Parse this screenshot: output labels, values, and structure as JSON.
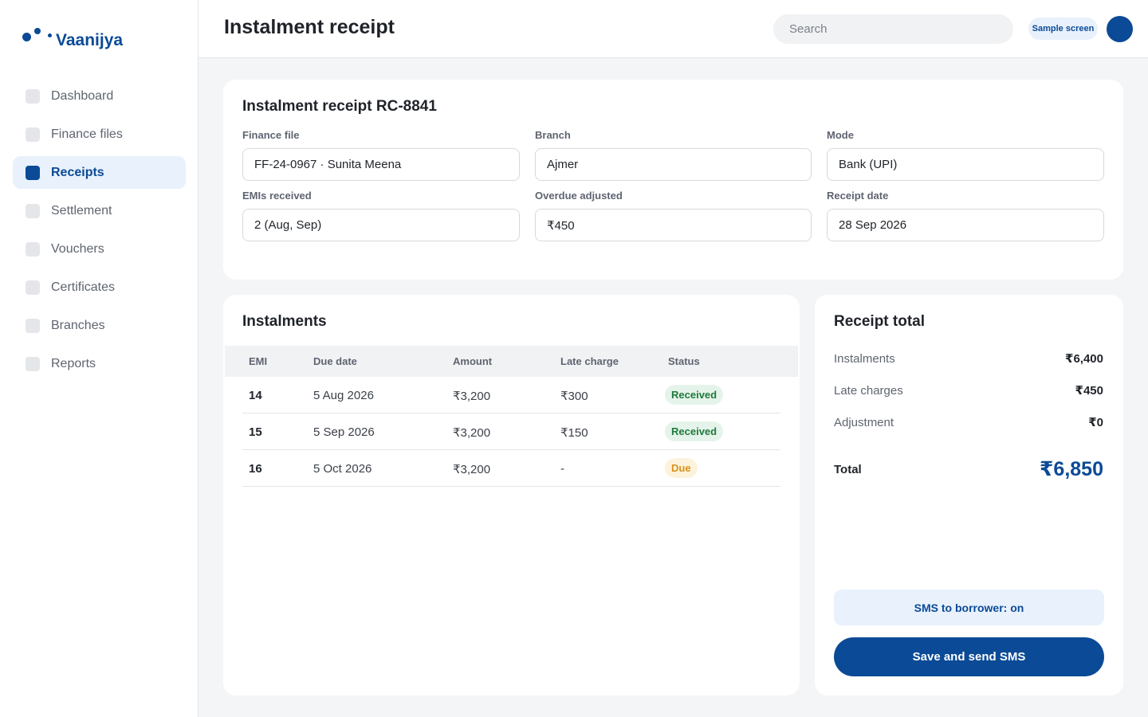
{
  "app": {
    "name": "Vaanijya"
  },
  "sidebar": {
    "items": [
      {
        "label": "Dashboard",
        "active": false
      },
      {
        "label": "Finance files",
        "active": false
      },
      {
        "label": "Receipts",
        "active": true
      },
      {
        "label": "Settlement",
        "active": false
      },
      {
        "label": "Vouchers",
        "active": false
      },
      {
        "label": "Certificates",
        "active": false
      },
      {
        "label": "Branches",
        "active": false
      },
      {
        "label": "Reports",
        "active": false
      }
    ]
  },
  "header": {
    "title": "Instalment receipt",
    "search_placeholder": "Search",
    "badge": "Sample screen"
  },
  "receipt": {
    "title": "Instalment receipt RC-8841",
    "fields": [
      {
        "label": "Finance file",
        "value": "FF-24-0967 · Sunita Meena"
      },
      {
        "label": "Branch",
        "value": "Ajmer"
      },
      {
        "label": "Mode",
        "value": "Bank (UPI)"
      },
      {
        "label": "EMIs received",
        "value": "2 (Aug, Sep)"
      },
      {
        "label": "Overdue adjusted",
        "value": "₹450"
      },
      {
        "label": "Receipt date",
        "value": "28 Sep 2026"
      }
    ]
  },
  "instalments": {
    "title": "Instalments",
    "columns": [
      "EMI",
      "Due date",
      "Amount",
      "Late charge",
      "Status"
    ],
    "rows": [
      {
        "emi": "14",
        "due_date": "5 Aug 2026",
        "amount": "₹3,200",
        "late_charge": "₹300",
        "status": "Received"
      },
      {
        "emi": "15",
        "due_date": "5 Sep 2026",
        "amount": "₹3,200",
        "late_charge": "₹150",
        "status": "Received"
      },
      {
        "emi": "16",
        "due_date": "5 Oct 2026",
        "amount": "₹3,200",
        "late_charge": "-",
        "status": "Due"
      }
    ]
  },
  "summary": {
    "title": "Receipt total",
    "rows": [
      {
        "label": "Instalments",
        "value": "₹6,400"
      },
      {
        "label": "Late charges",
        "value": "₹450"
      },
      {
        "label": "Adjustment",
        "value": "₹0"
      }
    ],
    "total_label": "Total",
    "total_value": "₹6,850",
    "sms_status": "SMS to borrower: on",
    "save_label": "Save and send SMS"
  },
  "colors": {
    "accent": "#0b4a96",
    "received": "#1e7a3c",
    "due": "#d9921a"
  }
}
